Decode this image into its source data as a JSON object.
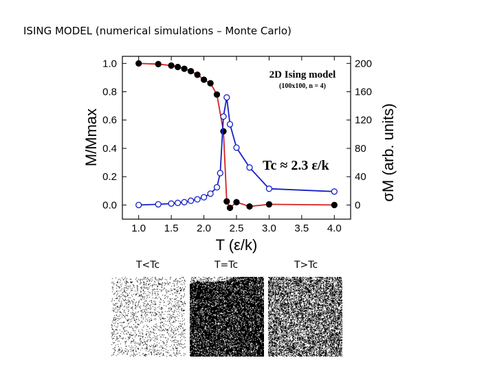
{
  "slide": {
    "title": "ISING MODEL (numerical simulations – Monte Carlo)"
  },
  "chart_data": {
    "type": "scatter",
    "box_title": "2D Ising model",
    "box_subtitle": "(100x100, n = 4)",
    "annotation": "Tc ≈ 2.3 ε/k",
    "xlabel": "T (ε/k)",
    "ylabel_left": "M/Mmax",
    "ylabel_right": "σM (arb. units)",
    "xlim": [
      0.75,
      4.25
    ],
    "ylim_left": [
      -0.1,
      1.05
    ],
    "ylim_right": [
      -20,
      210
    ],
    "x_ticks": [
      "1.0",
      "1.5",
      "2.0",
      "2.5",
      "3.0",
      "3.5",
      "4.0"
    ],
    "y_ticks_left": [
      "0.0",
      "0.2",
      "0.4",
      "0.6",
      "0.8",
      "1.0"
    ],
    "y_ticks_right": [
      "0",
      "40",
      "80",
      "120",
      "160",
      "200"
    ],
    "grid": false,
    "series": [
      {
        "axis": "left",
        "marker": "filled-circle",
        "line_color": "#d42020",
        "x": [
          1.0,
          1.3,
          1.5,
          1.6,
          1.7,
          1.8,
          1.9,
          2.0,
          2.1,
          2.2,
          2.3,
          2.35,
          2.4,
          2.5,
          2.7,
          3.0,
          4.0
        ],
        "y": [
          1.0,
          0.995,
          0.985,
          0.975,
          0.962,
          0.945,
          0.92,
          0.885,
          0.86,
          0.78,
          0.52,
          0.025,
          -0.02,
          0.02,
          -0.01,
          0.005,
          0.0
        ]
      },
      {
        "axis": "right",
        "marker": "open-circle",
        "line_color": "#1520c8",
        "x": [
          1.0,
          1.3,
          1.5,
          1.6,
          1.7,
          1.8,
          1.9,
          2.0,
          2.1,
          2.2,
          2.25,
          2.3,
          2.35,
          2.4,
          2.5,
          2.7,
          3.0,
          4.0
        ],
        "y": [
          0,
          1,
          2,
          3,
          4,
          6,
          8,
          11,
          16,
          25,
          45,
          125,
          152,
          114,
          81,
          53,
          23,
          19
        ]
      }
    ]
  },
  "snapshots": {
    "labels": [
      "T<Tc",
      "T=Tc",
      "T>Tc"
    ]
  }
}
